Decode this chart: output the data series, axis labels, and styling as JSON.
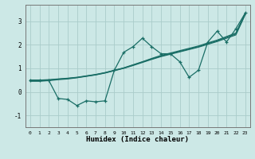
{
  "xlabel": "Humidex (Indice chaleur)",
  "bg_color": "#cce8e6",
  "grid_color": "#aaccca",
  "line_color": "#1a6e66",
  "xlim": [
    -0.5,
    23.5
  ],
  "ylim": [
    -1.5,
    3.7
  ],
  "yticks": [
    -1,
    0,
    1,
    2,
    3
  ],
  "xticks": [
    0,
    1,
    2,
    3,
    4,
    5,
    6,
    7,
    8,
    9,
    10,
    11,
    12,
    13,
    14,
    15,
    16,
    17,
    18,
    19,
    20,
    21,
    22,
    23
  ],
  "line1_y": [
    0.5,
    0.5,
    0.52,
    0.55,
    0.58,
    0.62,
    0.68,
    0.74,
    0.82,
    0.92,
    1.02,
    1.15,
    1.28,
    1.42,
    1.55,
    1.65,
    1.75,
    1.85,
    1.95,
    2.08,
    2.2,
    2.35,
    2.5,
    3.35
  ],
  "line2_y": [
    0.45,
    0.45,
    0.48,
    0.52,
    0.55,
    0.6,
    0.66,
    0.72,
    0.8,
    0.9,
    1.0,
    1.12,
    1.25,
    1.38,
    1.5,
    1.6,
    1.7,
    1.8,
    1.9,
    2.02,
    2.14,
    2.28,
    2.42,
    3.28
  ],
  "line3_y": [
    0.48,
    0.48,
    0.5,
    0.54,
    0.57,
    0.61,
    0.67,
    0.73,
    0.81,
    0.91,
    1.01,
    1.14,
    1.27,
    1.4,
    1.52,
    1.62,
    1.72,
    1.82,
    1.92,
    2.05,
    2.17,
    2.32,
    2.46,
    3.31
  ],
  "scatter_y": [
    0.5,
    0.5,
    0.48,
    -0.28,
    -0.32,
    -0.58,
    -0.38,
    -0.42,
    -0.38,
    0.92,
    1.68,
    1.92,
    2.28,
    1.92,
    1.62,
    1.62,
    1.28,
    0.62,
    0.92,
    2.12,
    2.58,
    2.12,
    2.68,
    3.35
  ]
}
